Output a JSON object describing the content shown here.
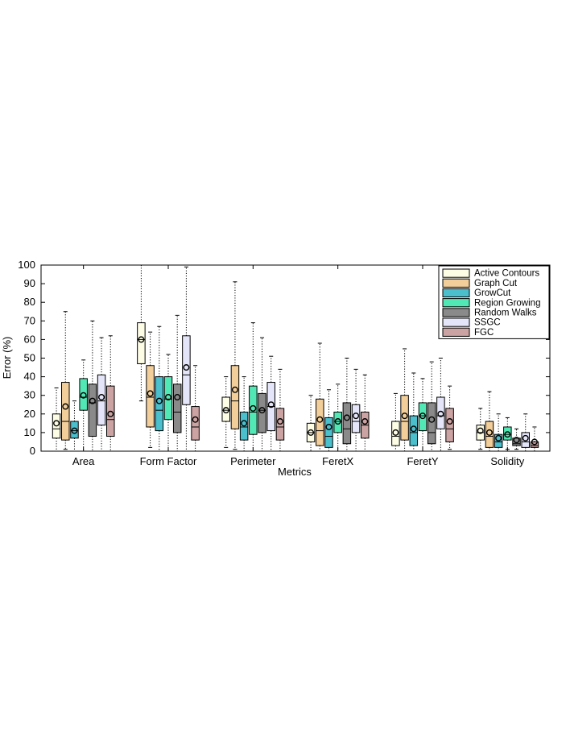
{
  "chart_data": {
    "type": "box",
    "title": "",
    "xlabel": "Metrics",
    "ylabel": "Error (%)",
    "ylim": [
      0,
      100
    ],
    "yticks": [
      0,
      10,
      20,
      30,
      40,
      50,
      60,
      70,
      80,
      90,
      100
    ],
    "grid": false,
    "legend_position": "top-right",
    "categories": [
      "Area",
      "Form Factor",
      "Perimeter",
      "FeretX",
      "FeretY",
      "Solidity"
    ],
    "series": [
      {
        "name": "Active Contours",
        "color": "#fdfde6",
        "boxes": [
          {
            "q1": 7,
            "median": 12,
            "q3": 20,
            "mean": 15,
            "whisker_low": 0,
            "whisker_high": 34
          },
          {
            "q1": 47,
            "median": 60,
            "q3": 69,
            "mean": 60,
            "whisker_low": 27,
            "whisker_high": 100
          },
          {
            "q1": 16,
            "median": 22,
            "q3": 29,
            "mean": 22,
            "whisker_low": 2,
            "whisker_high": 40
          },
          {
            "q1": 5,
            "median": 10,
            "q3": 15,
            "mean": 10,
            "whisker_low": 0,
            "whisker_high": 30
          },
          {
            "q1": 3,
            "median": 8,
            "q3": 16,
            "mean": 10,
            "whisker_low": 0,
            "whisker_high": 31
          },
          {
            "q1": 6,
            "median": 10,
            "q3": 14,
            "mean": 11,
            "whisker_low": 1,
            "whisker_high": 23
          }
        ]
      },
      {
        "name": "Graph Cut",
        "color": "#f2ce9a",
        "boxes": [
          {
            "q1": 6,
            "median": 16,
            "q3": 37,
            "mean": 24,
            "whisker_low": 1,
            "whisker_high": 75
          },
          {
            "q1": 13,
            "median": 29,
            "q3": 46,
            "mean": 31,
            "whisker_low": 2,
            "whisker_high": 64
          },
          {
            "q1": 12,
            "median": 27,
            "q3": 46,
            "mean": 33,
            "whisker_low": 1,
            "whisker_high": 91
          },
          {
            "q1": 3,
            "median": 11,
            "q3": 28,
            "mean": 17,
            "whisker_low": 0,
            "whisker_high": 58
          },
          {
            "q1": 6,
            "median": 16,
            "q3": 30,
            "mean": 19,
            "whisker_low": 0,
            "whisker_high": 55
          },
          {
            "q1": 2,
            "median": 8,
            "q3": 16,
            "mean": 10,
            "whisker_low": 0,
            "whisker_high": 32
          }
        ]
      },
      {
        "name": "GrowCut",
        "color": "#4bbfcc",
        "boxes": [
          {
            "q1": 7,
            "median": 11,
            "q3": 16,
            "mean": 11,
            "whisker_low": 0,
            "whisker_high": 27
          },
          {
            "q1": 11,
            "median": 22,
            "q3": 40,
            "mean": 27,
            "whisker_low": 0,
            "whisker_high": 67
          },
          {
            "q1": 6,
            "median": 13,
            "q3": 21,
            "mean": 15,
            "whisker_low": 0,
            "whisker_high": 40
          },
          {
            "q1": 2,
            "median": 8,
            "q3": 18,
            "mean": 13,
            "whisker_low": 0,
            "whisker_high": 33
          },
          {
            "q1": 3,
            "median": 10,
            "q3": 19,
            "mean": 12,
            "whisker_low": 0,
            "whisker_high": 42
          },
          {
            "q1": 2,
            "median": 5,
            "q3": 9,
            "mean": 7,
            "whisker_low": 0,
            "whisker_high": 20
          }
        ]
      },
      {
        "name": "Region Growing",
        "color": "#52e8b5",
        "boxes": [
          {
            "q1": 22,
            "median": 29,
            "q3": 39,
            "mean": 30,
            "whisker_low": 0,
            "whisker_high": 49
          },
          {
            "q1": 17,
            "median": 28,
            "q3": 40,
            "mean": 29,
            "whisker_low": 0,
            "whisker_high": 52
          },
          {
            "q1": 9,
            "median": 21,
            "q3": 35,
            "mean": 23,
            "whisker_low": 0,
            "whisker_high": 69
          },
          {
            "q1": 10,
            "median": 16,
            "q3": 21,
            "mean": 16,
            "whisker_low": 0,
            "whisker_high": 36
          },
          {
            "q1": 11,
            "median": 19,
            "q3": 26,
            "mean": 19,
            "whisker_low": 0,
            "whisker_high": 39
          },
          {
            "q1": 6,
            "median": 9,
            "q3": 13,
            "mean": 9,
            "whisker_low": 1,
            "whisker_high": 18
          }
        ]
      },
      {
        "name": "Random Walks",
        "color": "#8a8a8a",
        "boxes": [
          {
            "q1": 8,
            "median": 26,
            "q3": 36,
            "mean": 27,
            "whisker_low": 0,
            "whisker_high": 70
          },
          {
            "q1": 10,
            "median": 21,
            "q3": 36,
            "mean": 29,
            "whisker_low": 0,
            "whisker_high": 73
          },
          {
            "q1": 10,
            "median": 22,
            "q3": 31,
            "mean": 22,
            "whisker_low": 0,
            "whisker_high": 61
          },
          {
            "q1": 4,
            "median": 12,
            "q3": 26,
            "mean": 18,
            "whisker_low": 0,
            "whisker_high": 50
          },
          {
            "q1": 4,
            "median": 10,
            "q3": 26,
            "mean": 17,
            "whisker_low": 0,
            "whisker_high": 48
          },
          {
            "q1": 3,
            "median": 4,
            "q3": 7,
            "mean": 6,
            "whisker_low": 1,
            "whisker_high": 12
          }
        ]
      },
      {
        "name": "SSGC",
        "color": "#e4e5f8",
        "boxes": [
          {
            "q1": 14,
            "median": 27,
            "q3": 41,
            "mean": 29,
            "whisker_low": 0,
            "whisker_high": 61
          },
          {
            "q1": 25,
            "median": 41,
            "q3": 62,
            "mean": 45,
            "whisker_low": 0,
            "whisker_high": 99
          },
          {
            "q1": 11,
            "median": 24,
            "q3": 37,
            "mean": 25,
            "whisker_low": 0,
            "whisker_high": 51
          },
          {
            "q1": 10,
            "median": 16,
            "q3": 25,
            "mean": 19,
            "whisker_low": 0,
            "whisker_high": 44
          },
          {
            "q1": 12,
            "median": 19,
            "q3": 29,
            "mean": 20,
            "whisker_low": 0,
            "whisker_high": 50
          },
          {
            "q1": 2,
            "median": 5,
            "q3": 10,
            "mean": 7,
            "whisker_low": 0,
            "whisker_high": 20
          }
        ]
      },
      {
        "name": "FGC",
        "color": "#cca3a3",
        "boxes": [
          {
            "q1": 8,
            "median": 17,
            "q3": 35,
            "mean": 20,
            "whisker_low": 0,
            "whisker_high": 62
          },
          {
            "q1": 6,
            "median": 13,
            "q3": 24,
            "mean": 17,
            "whisker_low": 0,
            "whisker_high": 46
          },
          {
            "q1": 6,
            "median": 13,
            "q3": 23,
            "mean": 16,
            "whisker_low": 0,
            "whisker_high": 44
          },
          {
            "q1": 7,
            "median": 14,
            "q3": 21,
            "mean": 16,
            "whisker_low": 0,
            "whisker_high": 41
          },
          {
            "q1": 5,
            "median": 12,
            "q3": 23,
            "mean": 16,
            "whisker_low": 1,
            "whisker_high": 35
          },
          {
            "q1": 2,
            "median": 3,
            "q3": 5,
            "mean": 5,
            "whisker_low": 0,
            "whisker_high": 13
          }
        ]
      }
    ]
  }
}
